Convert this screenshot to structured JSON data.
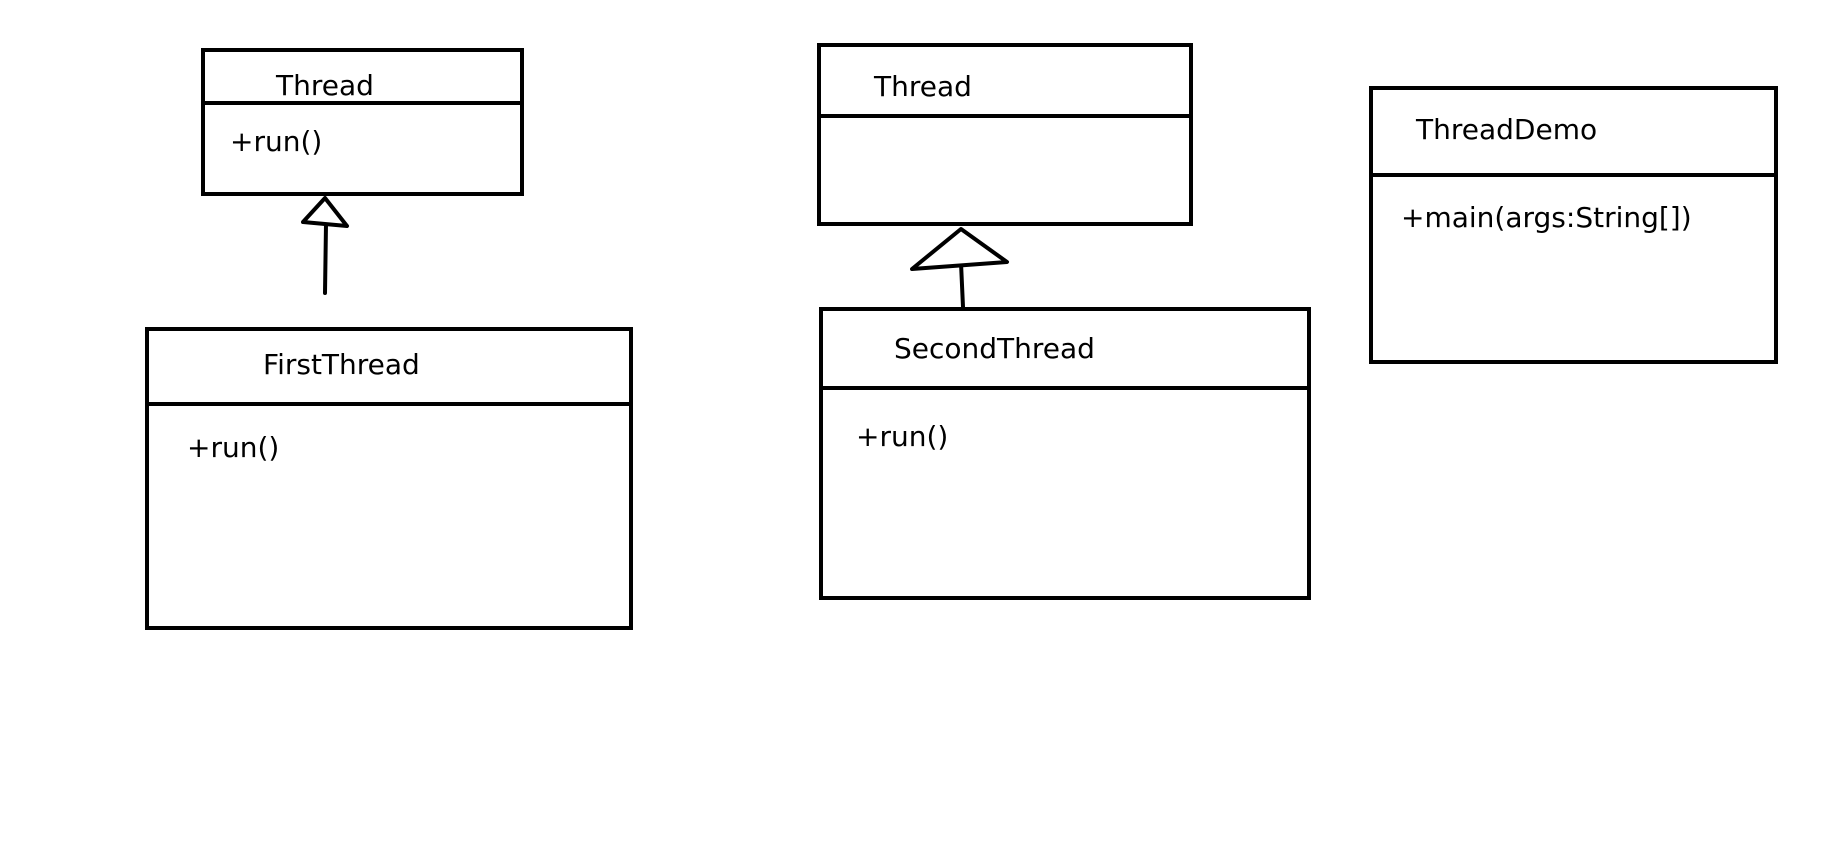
{
  "diagram": {
    "classes": [
      {
        "id": "thread-1",
        "name": "Thread",
        "operations": [
          "+run()"
        ]
      },
      {
        "id": "first-thread",
        "name": "FirstThread",
        "operations": [
          "+run()"
        ]
      },
      {
        "id": "thread-2",
        "name": "Thread",
        "operations": []
      },
      {
        "id": "second-thread",
        "name": "SecondThread",
        "operations": [
          "+run()"
        ]
      },
      {
        "id": "thread-demo",
        "name": "ThreadDemo",
        "operations": [
          "+main(args:String[])"
        ]
      }
    ],
    "relations": [
      {
        "type": "generalization",
        "from": "first-thread",
        "to": "thread-1"
      },
      {
        "type": "generalization",
        "from": "second-thread",
        "to": "thread-2"
      }
    ]
  }
}
